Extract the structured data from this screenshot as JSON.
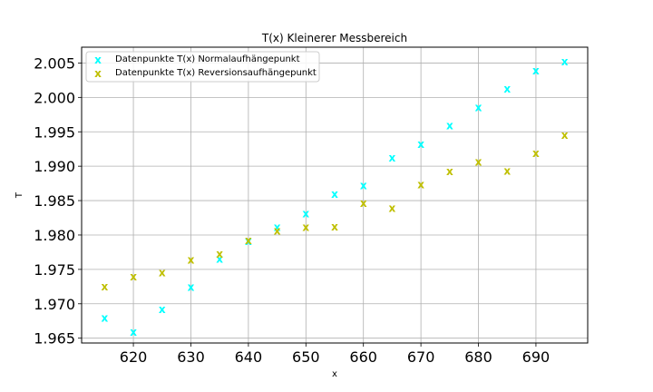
{
  "chart_data": {
    "type": "scatter",
    "title": "T(x) Kleinerer Messbereich",
    "xlabel": "x",
    "ylabel": "T",
    "xlim": [
      611,
      699
    ],
    "ylim": [
      1.9643,
      2.0073
    ],
    "xticks": [
      "620",
      "630",
      "640",
      "650",
      "660",
      "670",
      "680",
      "690"
    ],
    "yticks": [
      "1.965",
      "1.970",
      "1.975",
      "1.980",
      "1.985",
      "1.990",
      "1.995",
      "2.000",
      "2.005"
    ],
    "grid": true,
    "legend_position": "top-left",
    "marker_glyph": "x",
    "series": [
      {
        "name": "Datenpunkte T(x) Normalaufhängepunkt",
        "color": "#00ffff",
        "x": [
          615,
          620,
          625,
          630,
          635,
          640,
          645,
          650,
          655,
          660,
          665,
          670,
          675,
          680,
          685,
          690,
          695
        ],
        "y": [
          1.9679,
          1.9659,
          1.9692,
          1.9724,
          1.9765,
          1.9791,
          1.9811,
          1.9831,
          1.9859,
          1.9872,
          1.9912,
          1.9932,
          1.9959,
          1.9985,
          2.0012,
          2.0039,
          2.0052
        ]
      },
      {
        "name": "Datenpunkte T(x) Reversionsaufhängepunkt",
        "color": "#bfbf00",
        "x": [
          615,
          620,
          625,
          630,
          635,
          640,
          645,
          650,
          655,
          660,
          665,
          670,
          675,
          680,
          685,
          690,
          695
        ],
        "y": [
          1.9725,
          1.9739,
          1.9745,
          1.9764,
          1.9772,
          1.9792,
          1.9806,
          1.9811,
          1.9812,
          1.9846,
          1.9839,
          1.9873,
          1.9892,
          1.9906,
          1.9893,
          1.9919,
          1.9945
        ]
      }
    ]
  }
}
